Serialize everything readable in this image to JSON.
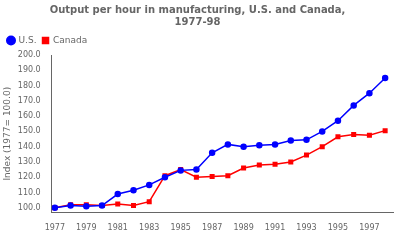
{
  "chart_data": {
    "type": "line",
    "title": "Output per hour in manufacturing, U.S. and Canada,\n1977-98",
    "ylabel": "Index (1977= 100.0)",
    "x": [
      1977,
      1978,
      1979,
      1980,
      1981,
      1982,
      1983,
      1984,
      1985,
      1986,
      1987,
      1988,
      1989,
      1990,
      1991,
      1992,
      1993,
      1994,
      1995,
      1996,
      1997,
      1998
    ],
    "series": [
      {
        "name": "U.S.",
        "color": "#0000FF",
        "marker": "circle",
        "values": [
          100.0,
          101.5,
          101.0,
          101.5,
          109.0,
          111.5,
          115.0,
          120.0,
          124.5,
          125.0,
          136.0,
          141.5,
          140.0,
          141.0,
          141.5,
          144.0,
          144.5,
          150.0,
          157.0,
          167.0,
          175.0,
          185.0
        ]
      },
      {
        "name": "Canada",
        "color": "#FF0000",
        "marker": "square",
        "values": [
          100.0,
          102.0,
          102.0,
          101.5,
          102.5,
          101.5,
          104.0,
          121.0,
          125.0,
          120.0,
          120.5,
          121.0,
          126.0,
          128.0,
          128.5,
          130.0,
          134.5,
          140.0,
          146.5,
          148.0,
          147.5,
          150.5
        ]
      }
    ],
    "xlim": [
      1976.8,
      1998.5
    ],
    "xticks": [
      1977,
      1979,
      1981,
      1983,
      1985,
      1987,
      1989,
      1991,
      1993,
      1995,
      1997
    ],
    "ylim": [
      97.0,
      200.0
    ],
    "yticks": [
      {
        "value": 100.0,
        "label": "100.0"
      },
      {
        "value": 110.0,
        "label": "110.0"
      },
      {
        "value": 120.0,
        "label": "120.0"
      },
      {
        "value": 130.0,
        "label": "130.0"
      },
      {
        "value": 140.0,
        "label": "140.0"
      },
      {
        "value": 150.0,
        "label": "150.0"
      },
      {
        "value": 160.0,
        "label": "160.0"
      },
      {
        "value": 170.0,
        "label": "170.0"
      },
      {
        "value": 180.0,
        "label": "180.0"
      },
      {
        "value": 190.0,
        "label": "190.0"
      },
      {
        "value": 200.0,
        "label": "200.0"
      }
    ],
    "grid": false,
    "legend": "upper left"
  }
}
